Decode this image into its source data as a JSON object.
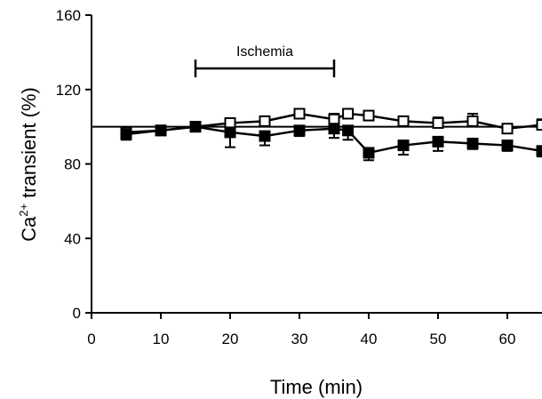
{
  "chart_data": {
    "type": "line",
    "xlabel": "Time (min)",
    "ylabel_main": "Ca",
    "ylabel_sup": "2+",
    "ylabel_rest": " transient (%)",
    "xlim": [
      0,
      65
    ],
    "ylim": [
      0,
      160
    ],
    "x_ticks": [
      0,
      10,
      20,
      30,
      40,
      50,
      60
    ],
    "y_ticks": [
      0,
      40,
      80,
      120,
      160
    ],
    "reference_line": 100,
    "annotation": {
      "label": "Ischemia",
      "x_start": 15,
      "x_end": 35
    },
    "series": [
      {
        "marker": "square-open",
        "x": [
          5,
          10,
          15,
          20,
          25,
          30,
          35,
          37,
          40,
          45,
          50,
          55,
          60,
          65
        ],
        "y": [
          97,
          98,
          100,
          102,
          103,
          107,
          104,
          107,
          106,
          103,
          102,
          103,
          99,
          101
        ],
        "err": [
          2,
          1,
          1,
          2,
          2,
          2,
          3,
          2,
          2,
          2,
          3,
          4,
          2,
          3
        ]
      },
      {
        "marker": "square-filled",
        "x": [
          5,
          10,
          15,
          20,
          25,
          30,
          35,
          37,
          40,
          45,
          50,
          55,
          60,
          65
        ],
        "y": [
          96,
          98,
          100,
          97,
          95,
          98,
          99,
          98,
          86,
          90,
          92,
          91,
          90,
          87
        ],
        "err": [
          3,
          2,
          1,
          8,
          5,
          3,
          5,
          5,
          4,
          5,
          5,
          3,
          3,
          3
        ]
      }
    ]
  }
}
